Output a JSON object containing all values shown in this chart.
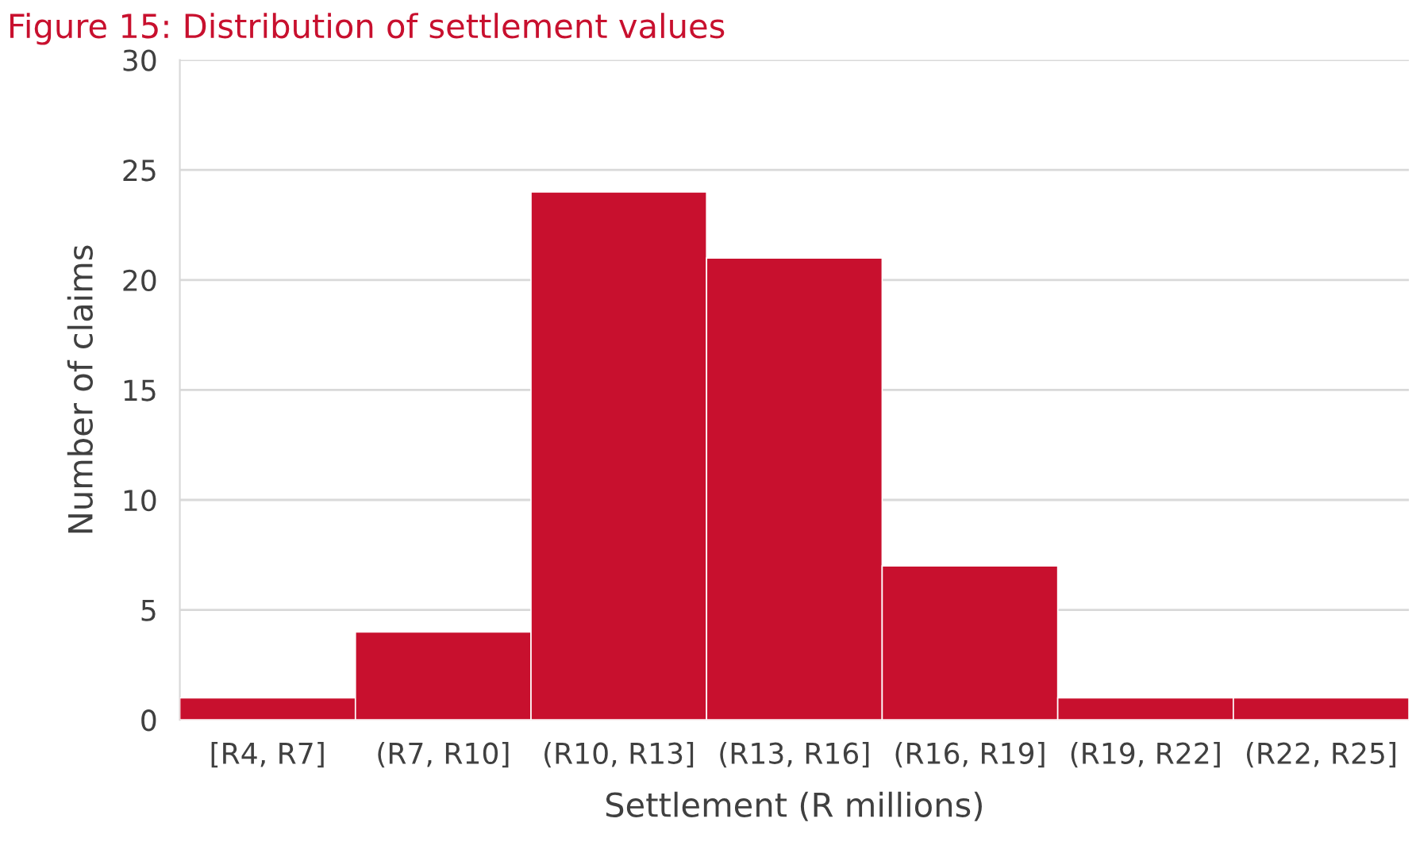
{
  "chart_data": {
    "type": "bar",
    "title": "Figure 15: Distribution of settlement values",
    "xlabel": "Settlement (R millions)",
    "ylabel": "Number of claims",
    "categories": [
      "[R4, R7]",
      "(R7, R10]",
      "(R10, R13]",
      "(R13, R16]",
      "(R16, R19]",
      "(R19, R22]",
      "(R22, R25]"
    ],
    "values": [
      1,
      4,
      24,
      21,
      7,
      1,
      1
    ],
    "color": "#c8102e",
    "ylim": [
      0,
      30
    ],
    "yticks": [
      0,
      5,
      10,
      15,
      20,
      25,
      30
    ],
    "grid": "y",
    "legend": false
  }
}
